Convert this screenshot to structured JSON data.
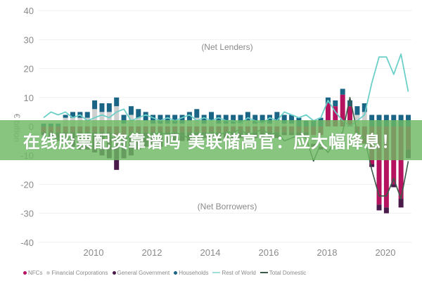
{
  "banner": {
    "text": "在线股票配资靠谱吗 美联储高官：应大幅降息！",
    "color": "#6eb964"
  },
  "chart_data": {
    "type": "bar",
    "title": "",
    "xlabel": "",
    "ylabel": "€ billion",
    "ylim": [
      -40,
      40
    ],
    "yticks": [
      40,
      30,
      20,
      10,
      0,
      -10,
      -20,
      -30,
      -40
    ],
    "xticks": [
      "2010",
      "2012",
      "2014",
      "2016",
      "2018",
      "2020"
    ],
    "grid": true,
    "legend_position": "bottom",
    "annotations": [
      "(Net Lenders)",
      "(Net Borrowers)"
    ],
    "x_start": "2008Q2",
    "x_end": "2020Q4",
    "series": [
      {
        "name": "NFCs",
        "kind": "bar",
        "color": "#b5135f",
        "values": [
          -2,
          -2,
          -2,
          -2,
          -2,
          -2,
          -2,
          -2,
          -2,
          -2,
          -3,
          -3,
          -3,
          -2,
          -2,
          -2,
          -2,
          -2,
          -2,
          -2,
          -2,
          -2,
          -2,
          -2,
          -2,
          -2,
          -2,
          -2,
          -2,
          -2,
          -2,
          -2,
          -2,
          -2,
          -2,
          -2,
          -2,
          -3,
          -3,
          8,
          7,
          11,
          7,
          -5,
          -6,
          -13,
          -27,
          -28,
          -20,
          -25,
          -8
        ]
      },
      {
        "name": "Financial Corporations",
        "kind": "bar",
        "color": "#cfcfcf",
        "values": [
          0,
          0,
          0,
          3,
          3,
          3,
          3,
          6,
          5,
          5,
          7,
          1,
          4,
          3,
          2,
          1,
          1,
          1,
          1,
          1,
          2,
          3,
          1,
          2,
          1,
          1,
          1,
          1,
          2,
          1,
          1,
          1,
          2,
          1,
          1,
          0,
          0,
          -3,
          -4,
          0,
          0,
          0,
          0,
          4,
          5,
          0,
          0,
          0,
          0,
          0,
          0
        ]
      },
      {
        "name": "General Government",
        "kind": "bar",
        "color": "#4a1a4a",
        "values": [
          -1,
          -2,
          -3,
          -4,
          -5,
          -6,
          -6,
          -7,
          -8,
          -9,
          -12,
          -8,
          -7,
          -6,
          -5,
          -4,
          -5,
          -4,
          -3,
          -3,
          -3,
          -3,
          -2,
          -2,
          -3,
          -2,
          -2,
          -2,
          -2,
          -2,
          -2,
          -2,
          -2,
          -1,
          -1,
          -1,
          -1,
          -1,
          -1,
          0,
          0,
          0,
          0,
          0,
          0,
          -1,
          -2,
          -2,
          -1,
          -3,
          -3
        ]
      },
      {
        "name": "Households",
        "kind": "bar",
        "color": "#1a6585",
        "values": [
          1,
          1,
          1,
          1,
          2,
          2,
          2,
          3,
          3,
          3,
          3,
          3,
          3,
          3,
          3,
          3,
          3,
          3,
          3,
          3,
          3,
          3,
          3,
          3,
          3,
          3,
          3,
          3,
          3,
          3,
          3,
          3,
          3,
          3,
          3,
          3,
          2,
          2,
          3,
          2,
          2,
          2,
          2,
          3,
          3,
          4,
          4,
          4,
          4,
          4,
          4
        ]
      },
      {
        "name": "Rest of World",
        "kind": "line",
        "color": "#6ccfc8",
        "values": [
          3,
          5,
          4,
          5,
          3,
          4,
          2,
          3,
          4,
          3,
          5,
          6,
          2,
          3,
          4,
          3,
          2,
          3,
          2,
          3,
          4,
          2,
          3,
          2,
          3,
          2,
          2,
          1,
          3,
          2,
          1,
          3,
          2,
          5,
          4,
          3,
          4,
          2,
          3,
          9,
          5,
          2,
          0,
          2,
          4,
          15,
          24,
          24,
          18,
          25,
          12
        ]
      },
      {
        "name": "Total Domestic",
        "kind": "line",
        "color": "#3a5a4a",
        "values": [
          -3,
          -5,
          -4,
          -5,
          -3,
          -4,
          -2,
          -3,
          -4,
          -3,
          -5,
          -6,
          -2,
          -3,
          -4,
          -3,
          -2,
          -3,
          -2,
          -3,
          -4,
          -2,
          -3,
          -2,
          -3,
          -2,
          -2,
          -1,
          -3,
          -2,
          -1,
          -3,
          -2,
          -5,
          -4,
          -3,
          -4,
          -12,
          -6,
          -9,
          -5,
          -2,
          10,
          -2,
          -4,
          -15,
          -24,
          -24,
          -18,
          -25,
          -12
        ]
      }
    ]
  },
  "legend": {
    "items": [
      {
        "label": "NFCs",
        "type": "dot",
        "color": "#b5135f"
      },
      {
        "label": "Financial Corporations",
        "type": "dot",
        "color": "#cfcfcf"
      },
      {
        "label": "General Government",
        "type": "dot",
        "color": "#4a1a4a"
      },
      {
        "label": "Households",
        "type": "dot",
        "color": "#1a6585"
      },
      {
        "label": "Rest of World",
        "type": "line",
        "color": "#9fe0da"
      },
      {
        "label": "Total Domestic",
        "type": "line",
        "color": "#3a5a4a"
      }
    ]
  }
}
